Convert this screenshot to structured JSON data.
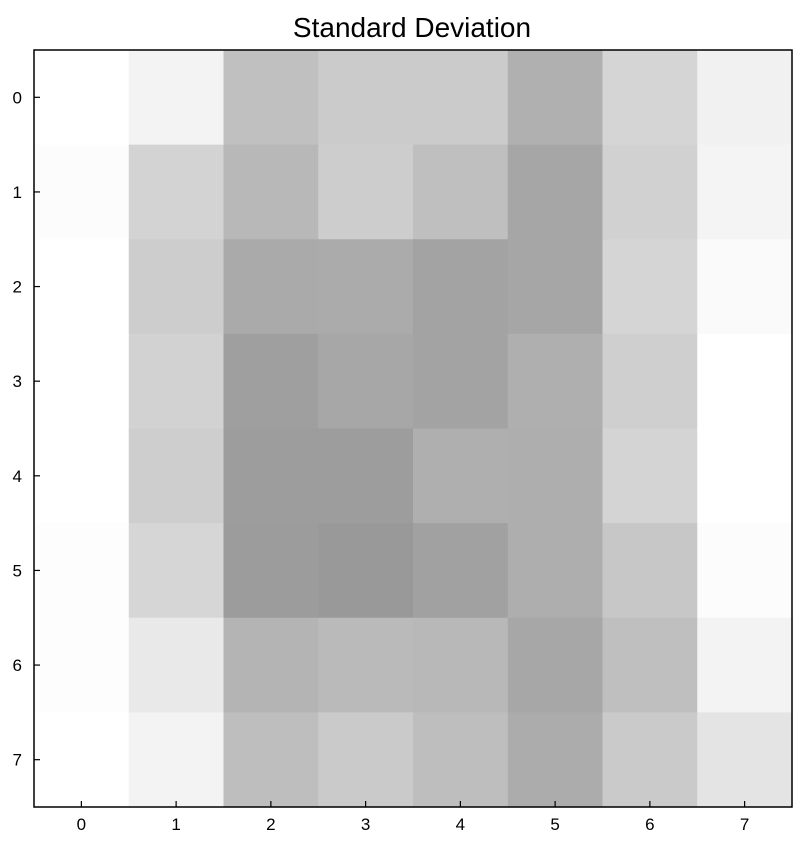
{
  "chart_data": {
    "type": "heatmap",
    "title": "Standard Deviation",
    "xlabel": "",
    "ylabel": "",
    "x_ticks": [
      "0",
      "1",
      "2",
      "3",
      "4",
      "5",
      "6",
      "7"
    ],
    "y_ticks": [
      "0",
      "1",
      "2",
      "3",
      "4",
      "5",
      "6",
      "7"
    ],
    "colormap": "grayscale (higher value = darker)",
    "color_low": "#ffffff",
    "color_high": "#999999",
    "rows": [
      [
        0.0,
        0.12,
        0.62,
        0.51,
        0.51,
        0.77,
        0.41,
        0.14
      ],
      [
        0.03,
        0.43,
        0.7,
        0.49,
        0.63,
        0.87,
        0.45,
        0.11
      ],
      [
        0.0,
        0.49,
        0.83,
        0.82,
        0.9,
        0.87,
        0.41,
        0.05
      ],
      [
        0.0,
        0.44,
        0.94,
        0.86,
        0.9,
        0.78,
        0.47,
        0.0
      ],
      [
        0.0,
        0.48,
        0.96,
        0.96,
        0.78,
        0.79,
        0.42,
        0.0
      ],
      [
        0.02,
        0.4,
        0.97,
        1.0,
        0.92,
        0.79,
        0.55,
        0.03
      ],
      [
        0.02,
        0.22,
        0.74,
        0.68,
        0.7,
        0.86,
        0.63,
        0.12
      ],
      [
        0.0,
        0.12,
        0.64,
        0.52,
        0.64,
        0.81,
        0.52,
        0.26
      ]
    ]
  }
}
